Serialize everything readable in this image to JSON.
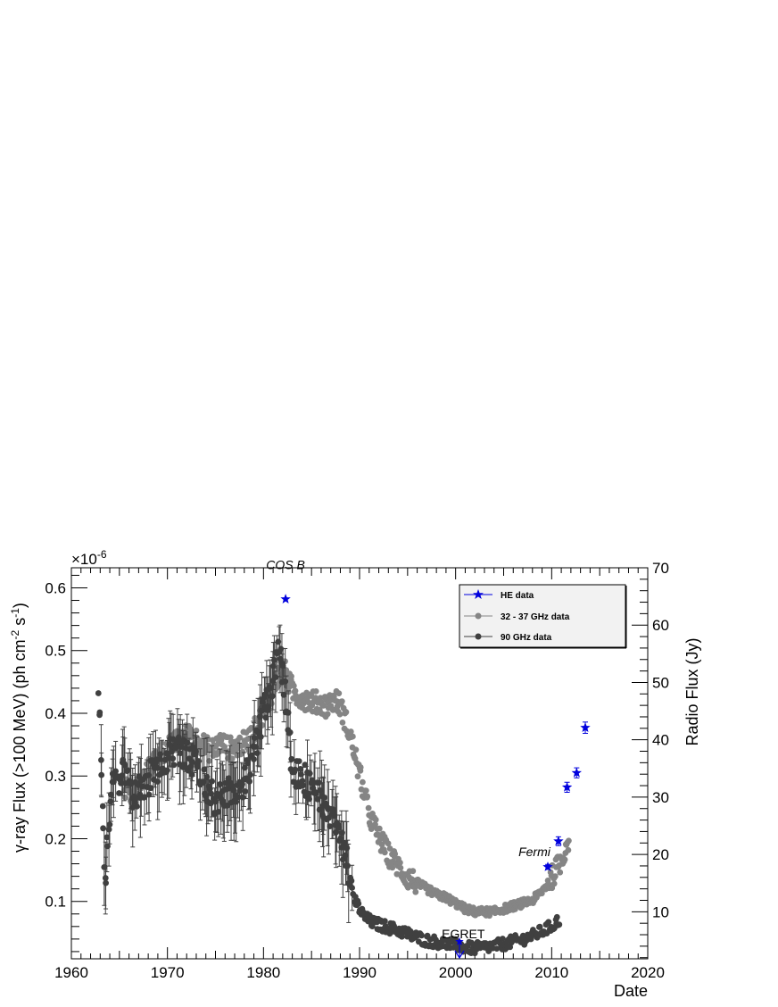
{
  "chart_data": {
    "type": "scatter",
    "title": "",
    "xlabel": "Date",
    "ylabel_left": "γ-ray Flux (>100 MeV) (ph cm⁻² s⁻¹)",
    "ylabel_left_parts": [
      "γ-ray Flux (>100 MeV) (ph cm",
      "-2",
      " s",
      "-1",
      ")"
    ],
    "ylabel_right": "Radio Flux (Jy)",
    "left_axis_exponent": "×10",
    "left_axis_exponent_power": "-6",
    "xlim": [
      1960,
      2020
    ],
    "ylim_left": [
      0.0085,
      0.632
    ],
    "ylim_right": [
      1.8,
      70
    ],
    "x_ticks": [
      1960,
      1970,
      1980,
      1990,
      2000,
      2010,
      2020
    ],
    "y_left_ticks": [
      "0.1",
      "0.2",
      "0.3",
      "0.4",
      "0.5",
      "0.6"
    ],
    "y_left_tick_values": [
      0.1,
      0.2,
      0.3,
      0.4,
      0.5,
      0.6
    ],
    "y_right_ticks": [
      "10",
      "20",
      "30",
      "40",
      "50",
      "60",
      "70"
    ],
    "y_right_tick_values": [
      10,
      20,
      30,
      40,
      50,
      60,
      70
    ],
    "legend": {
      "placement": "top-right",
      "entries": [
        "HE data",
        "32 - 37 GHz data",
        "90 GHz data"
      ]
    },
    "annotations": [
      {
        "text": "COS B",
        "x": 1982.3,
        "y": 0.63,
        "italic": true
      },
      {
        "text": "Fermi",
        "x": 2008.2,
        "y": 0.172,
        "italic": true
      },
      {
        "text": "EGRET",
        "x": 2000.8,
        "y": 0.041,
        "italic": false
      }
    ],
    "series": [
      {
        "name": "HE data",
        "axis": "left",
        "color": "#0000dd",
        "marker": "star",
        "points": [
          {
            "x": 1982.3,
            "y": 0.582
          },
          {
            "x": 2009.6,
            "y": 0.155,
            "err": 0.004
          },
          {
            "x": 2010.7,
            "y": 0.196,
            "err": 0.007
          },
          {
            "x": 2011.6,
            "y": 0.282,
            "err": 0.008
          },
          {
            "x": 2012.6,
            "y": 0.305,
            "err": 0.008
          },
          {
            "x": 2013.5,
            "y": 0.377,
            "err": 0.009
          }
        ],
        "upper_limit": {
          "x": 2000.4,
          "y": 0.036
        }
      },
      {
        "name": "32 - 37 GHz data",
        "axis": "right",
        "color": "#858585",
        "marker": "circle",
        "curve": [
          [
            1965.5,
            32
          ],
          [
            1966.5,
            30
          ],
          [
            1967.5,
            33
          ],
          [
            1968.5,
            36
          ],
          [
            1969.5,
            38
          ],
          [
            1970.5,
            39
          ],
          [
            1971.5,
            40.5
          ],
          [
            1972.5,
            41
          ],
          [
            1973.5,
            39.5
          ],
          [
            1974.5,
            38
          ],
          [
            1975.5,
            39.5
          ],
          [
            1976.5,
            38.5
          ],
          [
            1977.5,
            39
          ],
          [
            1978.5,
            40
          ],
          [
            1979.5,
            43
          ],
          [
            1980.5,
            47
          ],
          [
            1981.3,
            50
          ],
          [
            1982.0,
            53
          ],
          [
            1982.6,
            50
          ],
          [
            1983.3,
            48
          ],
          [
            1984.5,
            47
          ],
          [
            1985.5,
            46.5
          ],
          [
            1986.5,
            46
          ],
          [
            1987.5,
            47
          ],
          [
            1988.0,
            46
          ],
          [
            1989.0,
            41
          ],
          [
            1990.0,
            34
          ],
          [
            1991.0,
            27
          ],
          [
            1992.0,
            23
          ],
          [
            1993.0,
            20
          ],
          [
            1994.0,
            18
          ],
          [
            1995.0,
            16
          ],
          [
            1996.0,
            15
          ],
          [
            1997.0,
            14
          ],
          [
            1998.0,
            13
          ],
          [
            1999.0,
            12.5
          ],
          [
            2000.0,
            11.5
          ],
          [
            2001.0,
            10.5
          ],
          [
            2002.0,
            10
          ],
          [
            2003.0,
            10
          ],
          [
            2004.0,
            10
          ],
          [
            2005.0,
            10.5
          ],
          [
            2006.0,
            11
          ],
          [
            2007.0,
            11.5
          ],
          [
            2008.0,
            12
          ],
          [
            2009.2,
            14
          ],
          [
            2010.0,
            16
          ],
          [
            2011.0,
            19
          ],
          [
            2011.8,
            23
          ]
        ],
        "spread": 2.0
      },
      {
        "name": "90 GHz data",
        "axis": "right",
        "color": "#404040",
        "marker": "circle",
        "curve": [
          [
            1962.8,
            50
          ],
          [
            1963.5,
            15
          ],
          [
            1964.2,
            33
          ],
          [
            1965.5,
            34
          ],
          [
            1966.5,
            30
          ],
          [
            1967.5,
            32
          ],
          [
            1968.5,
            34
          ],
          [
            1969.5,
            36
          ],
          [
            1970.5,
            38
          ],
          [
            1971.5,
            38
          ],
          [
            1972.5,
            37
          ],
          [
            1973.5,
            33
          ],
          [
            1974.5,
            30
          ],
          [
            1975.5,
            30
          ],
          [
            1976.5,
            31
          ],
          [
            1977.5,
            30
          ],
          [
            1978.5,
            35
          ],
          [
            1979.5,
            40
          ],
          [
            1980.0,
            45
          ],
          [
            1981.0,
            50
          ],
          [
            1981.6,
            58
          ],
          [
            1982.4,
            46
          ],
          [
            1983.0,
            34
          ],
          [
            1984.5,
            33
          ],
          [
            1985.5,
            30
          ],
          [
            1986.5,
            29
          ],
          [
            1987.5,
            26
          ],
          [
            1988.5,
            20
          ],
          [
            1989.5,
            12
          ],
          [
            1990.5,
            9
          ],
          [
            1991.5,
            8
          ],
          [
            1992.5,
            7.5
          ],
          [
            1993.5,
            7
          ],
          [
            1994.5,
            6.5
          ],
          [
            1995.5,
            5.8
          ],
          [
            1997.0,
            5
          ],
          [
            1998.5,
            4.6
          ],
          [
            2000.0,
            4.2
          ],
          [
            2001.0,
            3.8
          ],
          [
            2002.0,
            3.6
          ],
          [
            2003.0,
            3.8
          ],
          [
            2004.0,
            4
          ],
          [
            2005.0,
            4.4
          ],
          [
            2006.0,
            4.8
          ],
          [
            2007.0,
            5.2
          ],
          [
            2008.0,
            5.8
          ],
          [
            2009.0,
            6.6
          ],
          [
            2010.0,
            7.5
          ],
          [
            2010.8,
            8.6
          ]
        ],
        "spread": 3.0
      }
    ]
  }
}
